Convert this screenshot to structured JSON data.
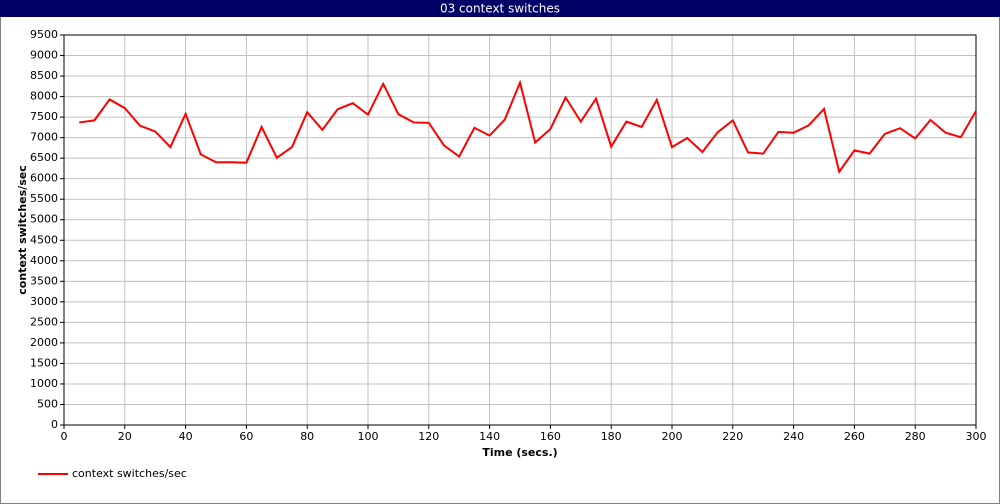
{
  "chart_data": {
    "type": "line",
    "title": "03 context switches",
    "x_label": "Time (secs.)",
    "y_label": "context switches/sec",
    "x": [
      5,
      10,
      15,
      20,
      25,
      30,
      35,
      40,
      45,
      50,
      55,
      60,
      65,
      70,
      75,
      80,
      85,
      90,
      95,
      100,
      105,
      110,
      115,
      120,
      125,
      130,
      135,
      140,
      145,
      150,
      155,
      160,
      165,
      170,
      175,
      180,
      185,
      190,
      195,
      200,
      205,
      210,
      215,
      220,
      225,
      230,
      235,
      240,
      245,
      250,
      255,
      260,
      265,
      270,
      275,
      280,
      285,
      290,
      295,
      300
    ],
    "series": [
      {
        "name": "context switches/sec",
        "color": "#ff0000",
        "values": [
          7370,
          7420,
          7930,
          7720,
          7290,
          7150,
          6770,
          7580,
          6590,
          6400,
          6400,
          6390,
          7260,
          6510,
          6770,
          7620,
          7190,
          7690,
          7840,
          7560,
          8310,
          7570,
          7370,
          7360,
          6810,
          6540,
          7240,
          7050,
          7440,
          8340,
          6880,
          7210,
          7980,
          7390,
          7950,
          6780,
          7390,
          7260,
          7920,
          6770,
          6990,
          6650,
          7130,
          7420,
          6640,
          6610,
          7140,
          7120,
          7300,
          7700,
          6170,
          6690,
          6610,
          7090,
          7230,
          6980,
          7430,
          7120,
          7010,
          7650
        ]
      }
    ],
    "xlim": [
      0,
      300
    ],
    "xticks": [
      0,
      20,
      40,
      60,
      80,
      100,
      120,
      140,
      160,
      180,
      200,
      220,
      240,
      260,
      280,
      300
    ],
    "ylim": [
      0,
      9500
    ],
    "yticks": [
      0,
      500,
      1000,
      1500,
      2000,
      2500,
      3000,
      3500,
      4000,
      4500,
      5000,
      5500,
      6000,
      6500,
      7000,
      7500,
      8000,
      8500,
      9000,
      9500
    ],
    "grid": true,
    "legend": "bottom-left"
  }
}
